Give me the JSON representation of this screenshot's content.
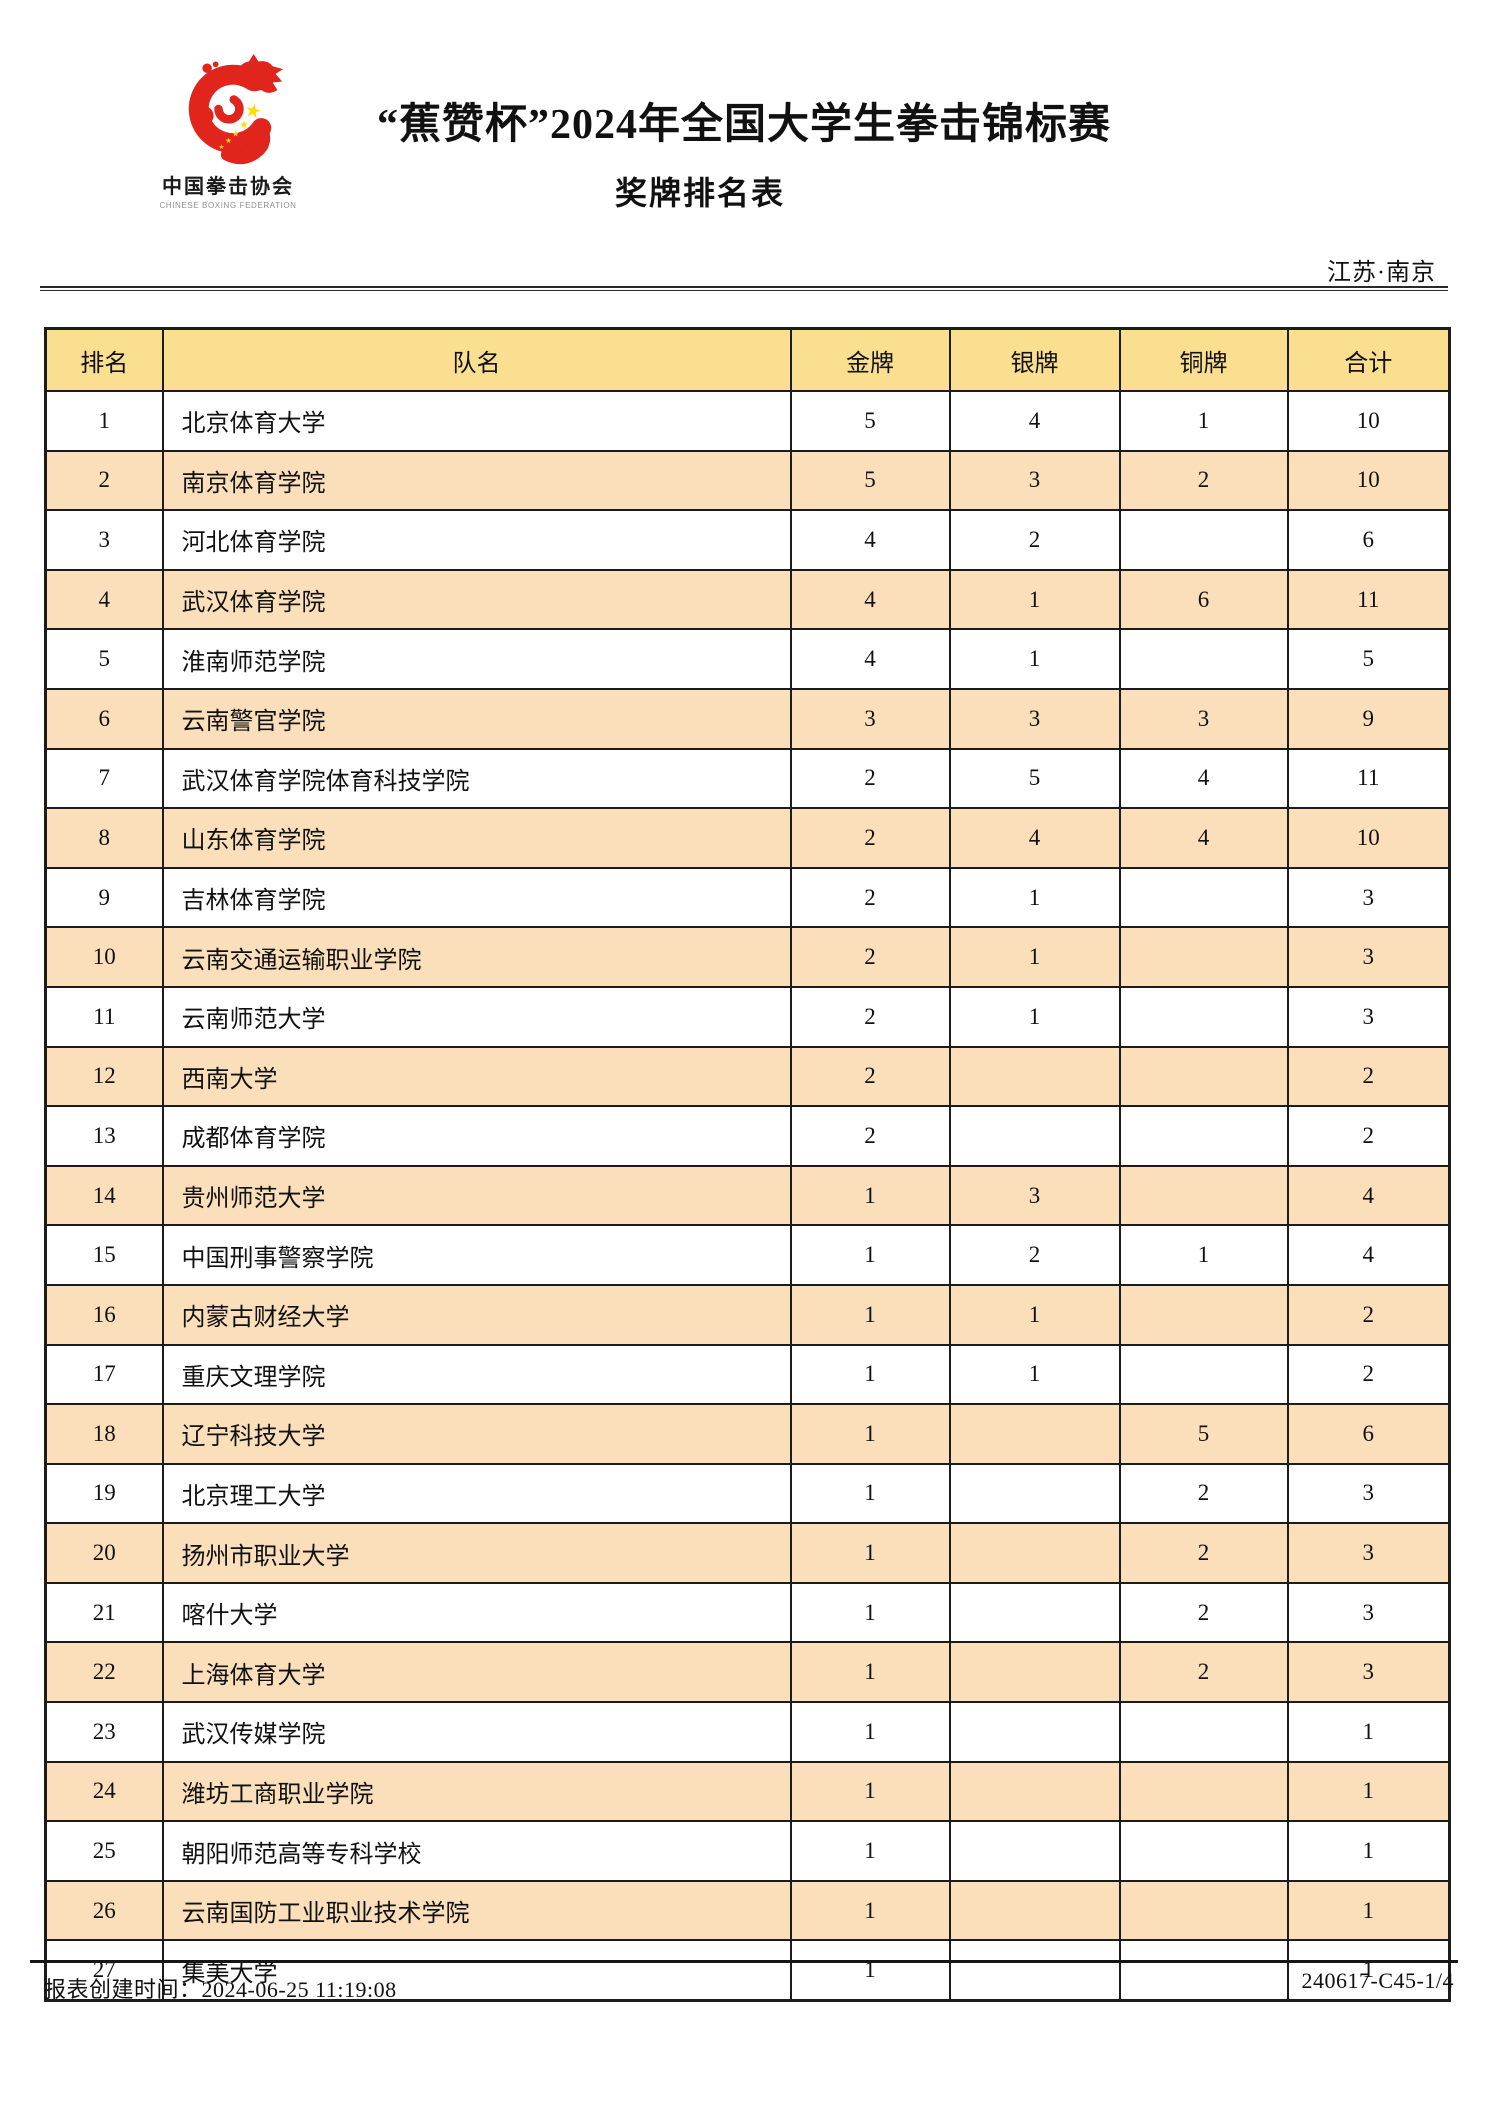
{
  "page": {
    "location": "江苏·南京"
  },
  "logo": {
    "name_cn": "中国拳击协会",
    "name_en": "CHINESE BOXING FEDERATION",
    "icon": "dragon-g-emblem",
    "accent_red": "#e0251c",
    "star_yellow": "#ffde00"
  },
  "header": {
    "title": "“蕉赞杯”2024年全国大学生拳击锦标赛",
    "subtitle": "奖牌排名表"
  },
  "table": {
    "columns": [
      "排名",
      "队名",
      "金牌",
      "银牌",
      "铜牌",
      "合计"
    ],
    "header_bg": "#fbdf90",
    "alt_row_bg": "#fbdfba",
    "rows": [
      [
        "1",
        "北京体育大学",
        "5",
        "4",
        "1",
        "10"
      ],
      [
        "2",
        "南京体育学院",
        "5",
        "3",
        "2",
        "10"
      ],
      [
        "3",
        "河北体育学院",
        "4",
        "2",
        "",
        "6"
      ],
      [
        "4",
        "武汉体育学院",
        "4",
        "1",
        "6",
        "11"
      ],
      [
        "5",
        "淮南师范学院",
        "4",
        "1",
        "",
        "5"
      ],
      [
        "6",
        "云南警官学院",
        "3",
        "3",
        "3",
        "9"
      ],
      [
        "7",
        "武汉体育学院体育科技学院",
        "2",
        "5",
        "4",
        "11"
      ],
      [
        "8",
        "山东体育学院",
        "2",
        "4",
        "4",
        "10"
      ],
      [
        "9",
        "吉林体育学院",
        "2",
        "1",
        "",
        "3"
      ],
      [
        "10",
        "云南交通运输职业学院",
        "2",
        "1",
        "",
        "3"
      ],
      [
        "11",
        "云南师范大学",
        "2",
        "1",
        "",
        "3"
      ],
      [
        "12",
        "西南大学",
        "2",
        "",
        "",
        "2"
      ],
      [
        "13",
        "成都体育学院",
        "2",
        "",
        "",
        "2"
      ],
      [
        "14",
        "贵州师范大学",
        "1",
        "3",
        "",
        "4"
      ],
      [
        "15",
        "中国刑事警察学院",
        "1",
        "2",
        "1",
        "4"
      ],
      [
        "16",
        "内蒙古财经大学",
        "1",
        "1",
        "",
        "2"
      ],
      [
        "17",
        "重庆文理学院",
        "1",
        "1",
        "",
        "2"
      ],
      [
        "18",
        "辽宁科技大学",
        "1",
        "",
        "5",
        "6"
      ],
      [
        "19",
        "北京理工大学",
        "1",
        "",
        "2",
        "3"
      ],
      [
        "20",
        "扬州市职业大学",
        "1",
        "",
        "2",
        "3"
      ],
      [
        "21",
        "喀什大学",
        "1",
        "",
        "2",
        "3"
      ],
      [
        "22",
        "上海体育大学",
        "1",
        "",
        "2",
        "3"
      ],
      [
        "23",
        "武汉传媒学院",
        "1",
        "",
        "",
        "1"
      ],
      [
        "24",
        "潍坊工商职业学院",
        "1",
        "",
        "",
        "1"
      ],
      [
        "25",
        "朝阳师范高等专科学校",
        "1",
        "",
        "",
        "1"
      ],
      [
        "26",
        "云南国防工业职业技术学院",
        "1",
        "",
        "",
        "1"
      ],
      [
        "27",
        "集美大学",
        "1",
        "",
        "",
        "1"
      ]
    ]
  },
  "footer": {
    "created_label": "报表创建时间：",
    "created_time": "2024-06-25 11:19:08",
    "doc_code": "240617-C45-1/4"
  }
}
